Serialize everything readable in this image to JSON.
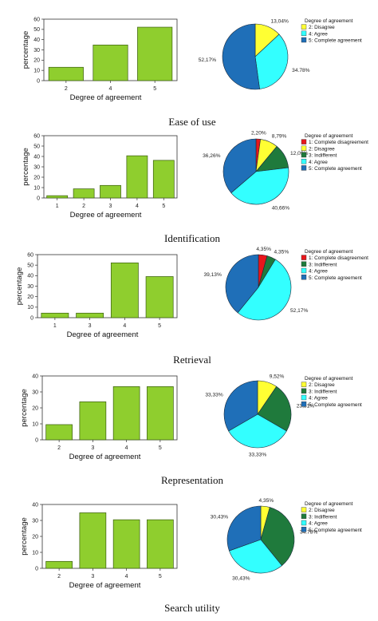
{
  "colors": {
    "bar": "#8fce2e",
    "bar_stroke": "#3a5c10",
    "axis": "#333333",
    "pie_stroke": "#1b2a3c",
    "grade_colors": {
      "1": "#e8161b",
      "2": "#ffff33",
      "3": "#1f7a3c",
      "4": "#33ffff",
      "5": "#1f6fb8"
    }
  },
  "chart_data": [
    {
      "caption": "Ease of use",
      "bar": {
        "type": "bar",
        "categories": [
          "2",
          "4",
          "5"
        ],
        "values": [
          13.04,
          34.78,
          52.17
        ],
        "xlabel": "Degree of agreement",
        "ylabel": "percentage",
        "ylim": [
          0,
          60
        ],
        "yticks": [
          0,
          10,
          20,
          30,
          40,
          50,
          60
        ],
        "grid": false
      },
      "pie": {
        "type": "pie",
        "legend_title": "Degree of agreement",
        "legend_placement": "top-right",
        "slices": [
          {
            "grade": "2",
            "name": "2: Disagree",
            "value": 13.04,
            "label": "13,04%"
          },
          {
            "grade": "4",
            "name": "4: Agree",
            "value": 34.78,
            "label": "34.78%"
          },
          {
            "grade": "5",
            "name": "5: Complete agreement",
            "value": 52.17,
            "label": "52,17%"
          }
        ]
      }
    },
    {
      "caption": "Identification",
      "bar": {
        "type": "bar",
        "categories": [
          "1",
          "2",
          "3",
          "4",
          "5"
        ],
        "values": [
          2.2,
          8.79,
          12.09,
          40.66,
          36.26
        ],
        "xlabel": "Degree of agreement",
        "ylabel": "percentage",
        "ylim": [
          0,
          60
        ],
        "yticks": [
          0,
          10,
          20,
          30,
          40,
          50,
          60
        ],
        "grid": false
      },
      "pie": {
        "type": "pie",
        "legend_title": "Degree of agreement",
        "legend_placement": "top-right",
        "slices": [
          {
            "grade": "1",
            "name": "1: Complete disagreement",
            "value": 2.2,
            "label": "2,20%"
          },
          {
            "grade": "2",
            "name": "2: Disagree",
            "value": 8.79,
            "label": "8,79%"
          },
          {
            "grade": "3",
            "name": "3: Indifferent",
            "value": 12.09,
            "label": "12,09%"
          },
          {
            "grade": "4",
            "name": "4: Agree",
            "value": 40.66,
            "label": "40,66%"
          },
          {
            "grade": "5",
            "name": "5: Complete agreement",
            "value": 36.26,
            "label": "36,26%"
          }
        ]
      }
    },
    {
      "caption": "Retrieval",
      "bar": {
        "type": "bar",
        "categories": [
          "1",
          "3",
          "4",
          "5"
        ],
        "values": [
          4.35,
          4.35,
          52.17,
          39.13
        ],
        "xlabel": "Degree of agreement",
        "ylabel": "percentage",
        "ylim": [
          0,
          60
        ],
        "yticks": [
          0,
          10,
          20,
          30,
          40,
          50,
          60
        ],
        "grid": false
      },
      "pie": {
        "type": "pie",
        "legend_title": "Degree of agreement",
        "legend_placement": "top-right",
        "slices": [
          {
            "grade": "1",
            "name": "1: Complete disagreement",
            "value": 4.35,
            "label": "4,35%"
          },
          {
            "grade": "3",
            "name": "3: Indifferent",
            "value": 4.35,
            "label": "4,35%"
          },
          {
            "grade": "4",
            "name": "4: Agree",
            "value": 52.17,
            "label": "52,17%"
          },
          {
            "grade": "5",
            "name": "5: Complete agreement",
            "value": 39.13,
            "label": "39,13%"
          }
        ]
      }
    },
    {
      "caption": "Representation",
      "bar": {
        "type": "bar",
        "categories": [
          "2",
          "3",
          "4",
          "5"
        ],
        "values": [
          9.52,
          23.81,
          33.33,
          33.33
        ],
        "xlabel": "Degree of agreement",
        "ylabel": "percentage",
        "ylim": [
          0,
          40
        ],
        "yticks": [
          0,
          10,
          20,
          30,
          40
        ],
        "grid": false
      },
      "pie": {
        "type": "pie",
        "legend_title": "Degree of agreement",
        "legend_placement": "top-right",
        "slices": [
          {
            "grade": "2",
            "name": "2: Disagree",
            "value": 9.52,
            "label": "9,52%"
          },
          {
            "grade": "3",
            "name": "3: Indifferent",
            "value": 23.81,
            "label": "23,81%"
          },
          {
            "grade": "4",
            "name": "4: Agree",
            "value": 33.33,
            "label": "33,33%"
          },
          {
            "grade": "5",
            "name": "5: Complete agreement",
            "value": 33.33,
            "label": "33,33%"
          }
        ]
      }
    },
    {
      "caption": "Search utility",
      "bar": {
        "type": "bar",
        "categories": [
          "2",
          "3",
          "4",
          "5"
        ],
        "values": [
          4.35,
          34.78,
          30.43,
          30.43
        ],
        "xlabel": "Degree of agreement",
        "ylabel": "percentage",
        "ylim": [
          0,
          40
        ],
        "yticks": [
          0,
          10,
          20,
          30,
          40
        ],
        "grid": false
      },
      "pie": {
        "type": "pie",
        "legend_title": "Degree of agreement",
        "legend_placement": "top-right",
        "slices": [
          {
            "grade": "2",
            "name": "2: Disagree",
            "value": 4.35,
            "label": "4,35%"
          },
          {
            "grade": "3",
            "name": "3: Indifferent",
            "value": 34.78,
            "label": "34.78%"
          },
          {
            "grade": "4",
            "name": "4: Agree",
            "value": 30.43,
            "label": "30,43%"
          },
          {
            "grade": "5",
            "name": "5: Complete agreement",
            "value": 30.43,
            "label": "30,43%"
          }
        ]
      }
    }
  ]
}
